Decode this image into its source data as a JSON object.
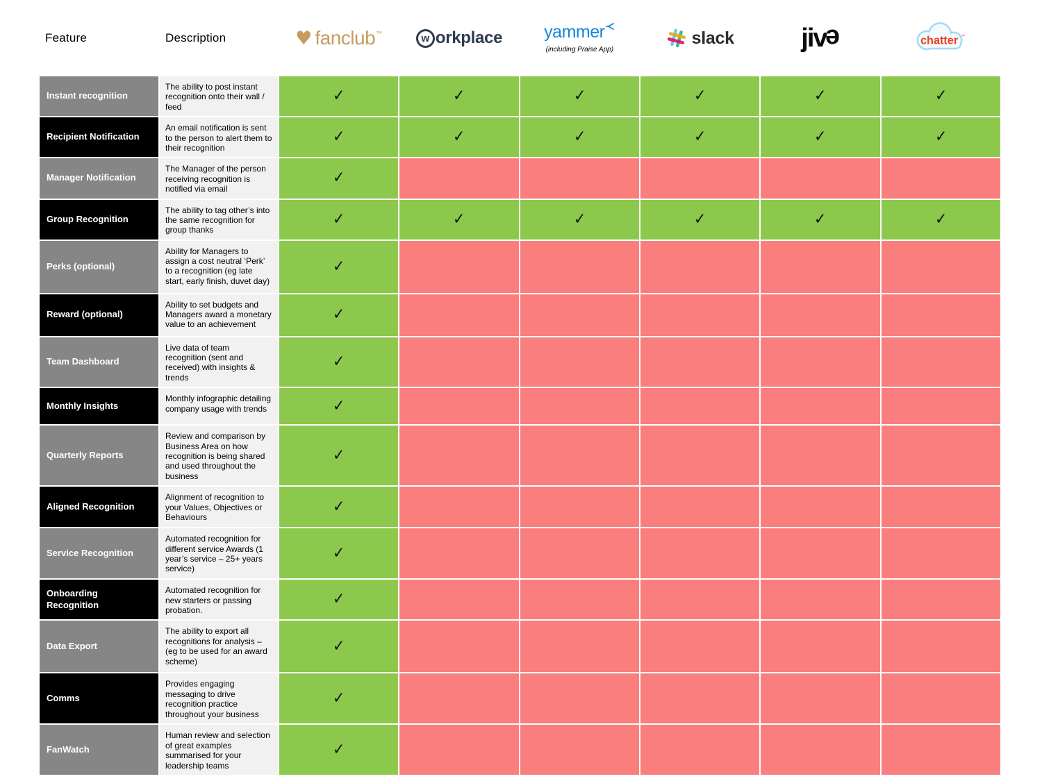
{
  "header": {
    "feature_label": "Feature",
    "description_label": "Description",
    "products": [
      {
        "id": "fanclub",
        "wordmark": "fanclub",
        "trademark": "™"
      },
      {
        "id": "workplace",
        "circle_letter": "w",
        "wordmark": "orkplace"
      },
      {
        "id": "yammer",
        "wordmark": "yammer",
        "subtitle": "(including Praise App)"
      },
      {
        "id": "slack",
        "wordmark": "slack"
      },
      {
        "id": "jive",
        "wordmark_prefix": "jiv",
        "wordmark_mirrored": "e"
      },
      {
        "id": "chatter",
        "wordmark": "chatter",
        "trademark": "™"
      }
    ]
  },
  "table": {
    "check_glyph": "✓",
    "rows": [
      {
        "feature": "Instant recognition",
        "description": "The ability to post instant recognition onto their wall / feed",
        "availability": [
          true,
          true,
          true,
          true,
          true,
          true
        ]
      },
      {
        "feature": "Recipient Notification",
        "description": "An email notification is sent to the person to alert them to their recognition",
        "availability": [
          true,
          true,
          true,
          true,
          true,
          true
        ]
      },
      {
        "feature": "Manager Notification",
        "description": "The Manager of the person receiving recognition is notified via email",
        "availability": [
          true,
          false,
          false,
          false,
          false,
          false
        ]
      },
      {
        "feature": "Group Recognition",
        "description": "The ability to tag other’s into the same recognition for group thanks",
        "availability": [
          true,
          true,
          true,
          true,
          true,
          true
        ]
      },
      {
        "feature": "Perks (optional)",
        "description": "Ability for Managers to assign a cost neutral ‘Perk’ to a recognition (eg late start, early finish, duvet day)",
        "availability": [
          true,
          false,
          false,
          false,
          false,
          false
        ]
      },
      {
        "feature": "Reward (optional)",
        "description": "Ability to set budgets and Managers award a monetary value to an achievement",
        "availability": [
          true,
          false,
          false,
          false,
          false,
          false
        ]
      },
      {
        "feature": "Team Dashboard",
        "description": "Live data of team recognition (sent and received) with insights & trends",
        "availability": [
          true,
          false,
          false,
          false,
          false,
          false
        ]
      },
      {
        "feature": "Monthly Insights",
        "description": "Monthly infographic detailing company usage with trends",
        "availability": [
          true,
          false,
          false,
          false,
          false,
          false
        ]
      },
      {
        "feature": "Quarterly Reports",
        "description": "Review and comparison by Business Area on how recognition is being shared and used throughout the business",
        "availability": [
          true,
          false,
          false,
          false,
          false,
          false
        ]
      },
      {
        "feature": "Aligned Recognition",
        "description": "Alignment of recognition to your Values, Objectives or Behaviours",
        "availability": [
          true,
          false,
          false,
          false,
          false,
          false
        ]
      },
      {
        "feature": "Service Recognition",
        "description": "Automated recognition for different service Awards (1 year’s service – 25+ years service)",
        "availability": [
          true,
          false,
          false,
          false,
          false,
          false
        ]
      },
      {
        "feature": "Onboarding Recognition",
        "description": "Automated recognition for new starters or passing probation.",
        "availability": [
          true,
          false,
          false,
          false,
          false,
          false
        ]
      },
      {
        "feature": "Data Export",
        "description": "The ability to export all recognitions for analysis – (eg to be used for an award scheme)",
        "availability": [
          true,
          false,
          false,
          false,
          false,
          false
        ]
      },
      {
        "feature": "Comms",
        "description": "Provides engaging messaging to drive recognition practice throughout your business",
        "availability": [
          true,
          false,
          false,
          false,
          false,
          false
        ]
      },
      {
        "feature": "FanWatch",
        "description": "Human review and selection of great examples summarised for your leadership teams",
        "availability": [
          true,
          false,
          false,
          false,
          false,
          false
        ]
      }
    ]
  },
  "colors": {
    "available": "#8CC84B",
    "unavailable": "#FB7E7E",
    "feature_gray": "#868686",
    "feature_black": "#000000",
    "description_bg": "#F1F1F1",
    "fanclub_gold": "#C79C5E",
    "workplace_navy": "#2E3B4E",
    "yammer_blue": "#1587DB",
    "slack_teal": "#6ECADC",
    "slack_yellow": "#E9A820",
    "slack_green": "#3EB991",
    "slack_pink": "#E01563",
    "chatter_red": "#E8401F",
    "chatter_cloud_border": "#A8D7F5",
    "chatter_cloud_fill": "#F3FAFF"
  }
}
